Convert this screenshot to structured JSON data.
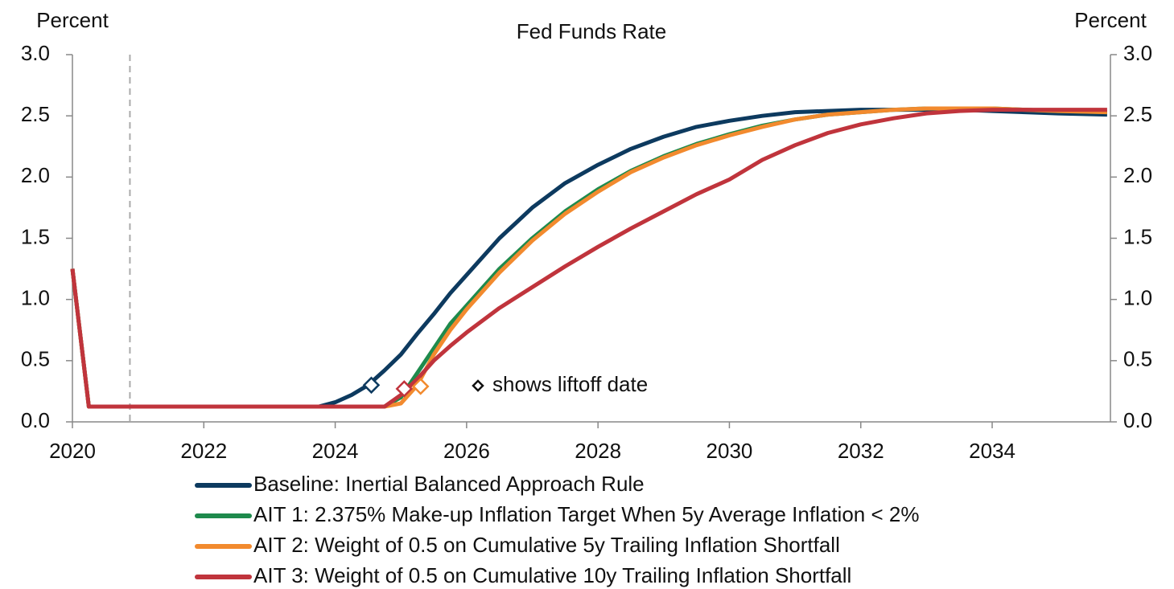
{
  "chart_data": {
    "type": "line",
    "title": "Fed Funds Rate",
    "y_label": "Percent",
    "y2_label": "Percent",
    "annotation": "shows liftoff date",
    "x": [
      2020,
      2020.25,
      2021,
      2022,
      2023,
      2023.75,
      2024,
      2024.25,
      2024.5,
      2024.75,
      2025,
      2025.25,
      2025.5,
      2025.75,
      2026,
      2026.5,
      2027,
      2027.5,
      2028,
      2028.5,
      2029,
      2029.5,
      2030,
      2030.5,
      2031,
      2031.5,
      2032,
      2032.5,
      2033,
      2033.5,
      2034,
      2034.5,
      2035,
      2035.75
    ],
    "series": [
      {
        "name": "Baseline: Inertial Balanced Approach Rule",
        "color": "#0d3a5f",
        "values": [
          1.25,
          0.125,
          0.125,
          0.125,
          0.125,
          0.125,
          0.16,
          0.22,
          0.3,
          0.42,
          0.55,
          0.72,
          0.88,
          1.05,
          1.2,
          1.5,
          1.75,
          1.95,
          2.1,
          2.23,
          2.33,
          2.41,
          2.46,
          2.5,
          2.53,
          2.54,
          2.55,
          2.55,
          2.55,
          2.55,
          2.54,
          2.53,
          2.52,
          2.51
        ],
        "liftoff": [
          2024.55,
          0.3
        ]
      },
      {
        "name": "AIT 1: 2.375% Make-up Inflation Target When 5y Average Inflation < 2%",
        "color": "#1e8a4c",
        "values": [
          1.25,
          0.125,
          0.125,
          0.125,
          0.125,
          0.125,
          0.125,
          0.125,
          0.125,
          0.125,
          0.2,
          0.4,
          0.6,
          0.8,
          0.95,
          1.25,
          1.5,
          1.72,
          1.9,
          2.05,
          2.17,
          2.27,
          2.35,
          2.42,
          2.47,
          2.51,
          2.53,
          2.55,
          2.56,
          2.56,
          2.56,
          2.55,
          2.54,
          2.53
        ]
      },
      {
        "name": "AIT 2: Weight of 0.5 on Cumulative 5y Trailing Inflation Shortfall",
        "color": "#f28a2e",
        "values": [
          1.25,
          0.125,
          0.125,
          0.125,
          0.125,
          0.125,
          0.125,
          0.125,
          0.125,
          0.125,
          0.15,
          0.3,
          0.55,
          0.75,
          0.92,
          1.22,
          1.48,
          1.7,
          1.88,
          2.04,
          2.16,
          2.26,
          2.34,
          2.41,
          2.47,
          2.51,
          2.53,
          2.55,
          2.56,
          2.56,
          2.56,
          2.55,
          2.54,
          2.53
        ],
        "liftoff": [
          2025.3,
          0.29
        ]
      },
      {
        "name": "AIT 3: Weight of 0.5 on Cumulative 10y Trailing Inflation Shortfall",
        "color": "#c0343c",
        "values": [
          1.25,
          0.125,
          0.125,
          0.125,
          0.125,
          0.125,
          0.125,
          0.125,
          0.125,
          0.125,
          0.22,
          0.35,
          0.5,
          0.62,
          0.73,
          0.93,
          1.1,
          1.27,
          1.43,
          1.58,
          1.72,
          1.86,
          1.98,
          2.14,
          2.26,
          2.36,
          2.43,
          2.48,
          2.52,
          2.54,
          2.55,
          2.55,
          2.55,
          2.55
        ],
        "liftoff": [
          2025.05,
          0.27
        ]
      }
    ],
    "vline": 2020.875,
    "xlim": [
      2020,
      2035.8
    ],
    "xticks": [
      2020,
      2022,
      2024,
      2026,
      2028,
      2030,
      2032,
      2034
    ],
    "ylim": [
      0,
      3
    ],
    "yticks": [
      {
        "value": 0,
        "label": "0.0"
      },
      {
        "value": 0.5,
        "label": "0.5"
      },
      {
        "value": 1,
        "label": "1.0"
      },
      {
        "value": 1.5,
        "label": "1.5"
      },
      {
        "value": 2,
        "label": "2.0"
      },
      {
        "value": 2.5,
        "label": "2.5"
      },
      {
        "value": 3,
        "label": "3.0"
      }
    ],
    "y2lim": [
      0,
      3
    ],
    "y2ticks": [
      {
        "value": 0,
        "label": "0.0"
      },
      {
        "value": 0.5,
        "label": "0.5"
      },
      {
        "value": 1,
        "label": "1.0"
      },
      {
        "value": 1.5,
        "label": "1.5"
      },
      {
        "value": 2,
        "label": "2.0"
      },
      {
        "value": 2.5,
        "label": "2.5"
      },
      {
        "value": 3,
        "label": "3.0"
      }
    ],
    "grid": false,
    "legend": "bottom"
  }
}
